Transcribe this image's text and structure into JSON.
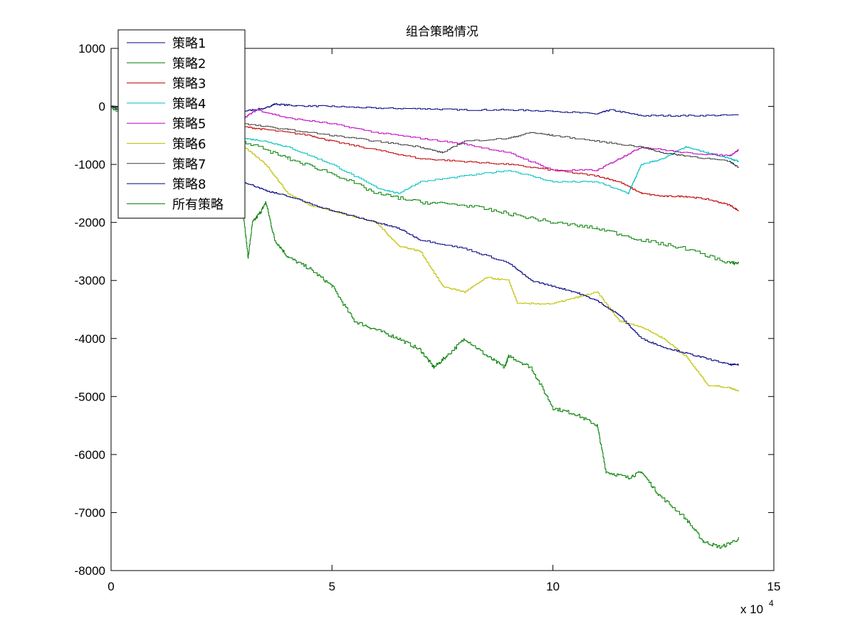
{
  "chart_data": {
    "type": "line",
    "title": "组合策略情况",
    "xlabel": "",
    "ylabel": "",
    "x_multiplier_label": {
      "base": "x 10",
      "exponent": "4"
    },
    "xlim": [
      0,
      15
    ],
    "ylim": [
      -8000,
      1000
    ],
    "x_ticks": [
      0,
      5,
      10,
      15
    ],
    "x_tick_labels": [
      "0",
      "5",
      "10",
      "15"
    ],
    "y_ticks": [
      1000,
      0,
      -1000,
      -2000,
      -3000,
      -4000,
      -5000,
      -6000,
      -7000,
      -8000
    ],
    "y_tick_labels": [
      "1000",
      "0",
      "-1000",
      "-2000",
      "-3000",
      "-4000",
      "-5000",
      "-6000",
      "-7000",
      "-8000"
    ],
    "grid": false,
    "legend_position": "top-left",
    "series": [
      {
        "name": "策略1",
        "color": "#00007f",
        "points": [
          [
            0,
            0
          ],
          [
            0.3,
            -40
          ],
          [
            1,
            -60
          ],
          [
            2,
            -70
          ],
          [
            3,
            -80
          ],
          [
            3.5,
            -30
          ],
          [
            3.7,
            40
          ],
          [
            4.2,
            10
          ],
          [
            5,
            0
          ],
          [
            6,
            -30
          ],
          [
            7,
            -40
          ],
          [
            8,
            -60
          ],
          [
            9,
            -60
          ],
          [
            10,
            -80
          ],
          [
            11,
            -130
          ],
          [
            11.3,
            -60
          ],
          [
            12,
            -160
          ],
          [
            13,
            -160
          ],
          [
            14.2,
            -150
          ]
        ]
      },
      {
        "name": "策略2",
        "color": "#007f00",
        "points": [
          [
            0,
            0
          ],
          [
            0.5,
            -300
          ],
          [
            1.5,
            -700
          ],
          [
            2.5,
            -1500
          ],
          [
            3,
            -1900
          ],
          [
            3.1,
            -2600
          ],
          [
            3.2,
            -2000
          ],
          [
            3.4,
            -1800
          ],
          [
            3.5,
            -1650
          ],
          [
            3.7,
            -2300
          ],
          [
            4,
            -2600
          ],
          [
            4.5,
            -2800
          ],
          [
            5,
            -3100
          ],
          [
            5.5,
            -3700
          ],
          [
            6,
            -3850
          ],
          [
            6.5,
            -4000
          ],
          [
            7,
            -4200
          ],
          [
            7.3,
            -4500
          ],
          [
            7.6,
            -4300
          ],
          [
            8,
            -4000
          ],
          [
            8.5,
            -4300
          ],
          [
            8.9,
            -4500
          ],
          [
            9,
            -4300
          ],
          [
            9.5,
            -4500
          ],
          [
            10,
            -5200
          ],
          [
            10.5,
            -5300
          ],
          [
            11,
            -5500
          ],
          [
            11.2,
            -6300
          ],
          [
            11.7,
            -6400
          ],
          [
            12,
            -6300
          ],
          [
            12.4,
            -6700
          ],
          [
            13,
            -7100
          ],
          [
            13.4,
            -7500
          ],
          [
            13.8,
            -7600
          ],
          [
            14.2,
            -7450
          ]
        ]
      },
      {
        "name": "策略3",
        "color": "#bf0000",
        "points": [
          [
            0,
            0
          ],
          [
            1,
            -150
          ],
          [
            2,
            -250
          ],
          [
            3,
            -350
          ],
          [
            3.5,
            -400
          ],
          [
            4.5,
            -500
          ],
          [
            5,
            -600
          ],
          [
            6,
            -750
          ],
          [
            7,
            -900
          ],
          [
            8,
            -950
          ],
          [
            9,
            -1000
          ],
          [
            10,
            -1100
          ],
          [
            11,
            -1200
          ],
          [
            11.5,
            -1300
          ],
          [
            12,
            -1500
          ],
          [
            12.5,
            -1550
          ],
          [
            13,
            -1550
          ],
          [
            13.5,
            -1600
          ],
          [
            14,
            -1700
          ],
          [
            14.2,
            -1800
          ]
        ]
      },
      {
        "name": "策略4",
        "color": "#00bfbf",
        "points": [
          [
            0,
            0
          ],
          [
            1,
            -200
          ],
          [
            2,
            -400
          ],
          [
            3,
            -550
          ],
          [
            3.5,
            -600
          ],
          [
            4,
            -700
          ],
          [
            5,
            -1000
          ],
          [
            6,
            -1400
          ],
          [
            6.5,
            -1500
          ],
          [
            7,
            -1300
          ],
          [
            8,
            -1200
          ],
          [
            9,
            -1100
          ],
          [
            10,
            -1300
          ],
          [
            11,
            -1300
          ],
          [
            11.7,
            -1500
          ],
          [
            12,
            -1000
          ],
          [
            12.5,
            -900
          ],
          [
            13,
            -700
          ],
          [
            13.5,
            -800
          ],
          [
            14,
            -900
          ],
          [
            14.2,
            -950
          ]
        ]
      },
      {
        "name": "策略5",
        "color": "#bf00bf",
        "points": [
          [
            0,
            0
          ],
          [
            1,
            -80
          ],
          [
            2,
            -150
          ],
          [
            3,
            -200
          ],
          [
            3.3,
            -60
          ],
          [
            4,
            -200
          ],
          [
            5,
            -300
          ],
          [
            6,
            -450
          ],
          [
            7,
            -550
          ],
          [
            8,
            -650
          ],
          [
            9,
            -800
          ],
          [
            10,
            -1100
          ],
          [
            11,
            -1100
          ],
          [
            11.5,
            -900
          ],
          [
            12,
            -700
          ],
          [
            13,
            -800
          ],
          [
            14,
            -850
          ],
          [
            14.2,
            -750
          ]
        ]
      },
      {
        "name": "策略6",
        "color": "#bfbf00",
        "points": [
          [
            0,
            0
          ],
          [
            1,
            -300
          ],
          [
            2,
            -600
          ],
          [
            3,
            -700
          ],
          [
            3.5,
            -1000
          ],
          [
            4,
            -1500
          ],
          [
            4.5,
            -1700
          ],
          [
            5,
            -1800
          ],
          [
            5.5,
            -1900
          ],
          [
            6,
            -2000
          ],
          [
            6.5,
            -2400
          ],
          [
            7,
            -2500
          ],
          [
            7.5,
            -3100
          ],
          [
            8,
            -3200
          ],
          [
            8.5,
            -2950
          ],
          [
            9,
            -3000
          ],
          [
            9.2,
            -3400
          ],
          [
            10,
            -3400
          ],
          [
            10.5,
            -3300
          ],
          [
            11,
            -3200
          ],
          [
            11.5,
            -3700
          ],
          [
            12,
            -3800
          ],
          [
            12.5,
            -4000
          ],
          [
            13,
            -4300
          ],
          [
            13.5,
            -4800
          ],
          [
            14,
            -4850
          ],
          [
            14.2,
            -4900
          ]
        ]
      },
      {
        "name": "策略7",
        "color": "#3f3f3f",
        "points": [
          [
            0,
            0
          ],
          [
            1,
            -150
          ],
          [
            2,
            -250
          ],
          [
            3,
            -300
          ],
          [
            4,
            -400
          ],
          [
            5,
            -500
          ],
          [
            6,
            -600
          ],
          [
            7,
            -700
          ],
          [
            7.5,
            -800
          ],
          [
            8,
            -600
          ],
          [
            9,
            -550
          ],
          [
            9.5,
            -450
          ],
          [
            10,
            -500
          ],
          [
            11,
            -600
          ],
          [
            12,
            -700
          ],
          [
            12.5,
            -800
          ],
          [
            13,
            -850
          ],
          [
            14,
            -950
          ],
          [
            14.2,
            -1050
          ]
        ]
      },
      {
        "name": "策略8",
        "color": "#00007f",
        "points": [
          [
            0,
            0
          ],
          [
            1,
            -400
          ],
          [
            2,
            -900
          ],
          [
            3,
            -1300
          ],
          [
            3.5,
            -1450
          ],
          [
            4,
            -1550
          ],
          [
            5,
            -1800
          ],
          [
            6,
            -2000
          ],
          [
            6.5,
            -2100
          ],
          [
            7,
            -2300
          ],
          [
            8,
            -2450
          ],
          [
            9,
            -2700
          ],
          [
            9.5,
            -3000
          ],
          [
            10,
            -3100
          ],
          [
            10.5,
            -3200
          ],
          [
            11,
            -3350
          ],
          [
            11.5,
            -3600
          ],
          [
            12,
            -4000
          ],
          [
            12.5,
            -4150
          ],
          [
            13,
            -4250
          ],
          [
            13.5,
            -4350
          ],
          [
            14,
            -4450
          ],
          [
            14.2,
            -4450
          ]
        ]
      },
      {
        "name": "所有策略",
        "color": "#007f00",
        "points": [
          [
            0,
            0
          ],
          [
            1,
            -200
          ],
          [
            2,
            -400
          ],
          [
            3,
            -600
          ],
          [
            4,
            -900
          ],
          [
            5,
            -1150
          ],
          [
            6,
            -1500
          ],
          [
            7,
            -1650
          ],
          [
            8,
            -1700
          ],
          [
            9,
            -1850
          ],
          [
            10,
            -2000
          ],
          [
            11,
            -2100
          ],
          [
            12,
            -2300
          ],
          [
            13,
            -2450
          ],
          [
            14,
            -2700
          ],
          [
            14.2,
            -2700
          ]
        ]
      }
    ]
  }
}
